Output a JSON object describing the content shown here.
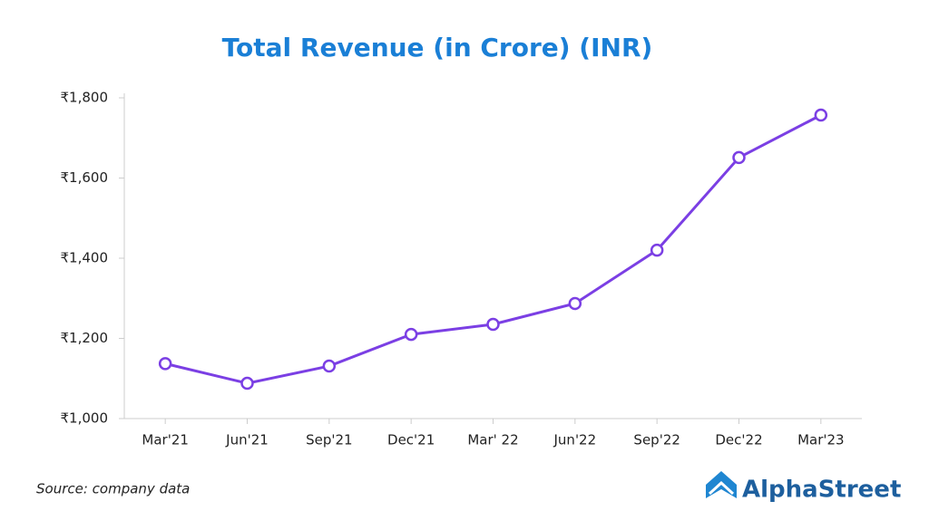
{
  "chart_data": {
    "type": "line",
    "title": "Total Revenue (in Crore) (INR)",
    "categories": [
      "Mar'21",
      "Jun'21",
      "Sep'21",
      "Dec'21",
      "Mar' 22",
      "Jun'22",
      "Sep'22",
      "Dec'22",
      "Mar'23"
    ],
    "series": [
      {
        "name": "Total Revenue",
        "color": "#7b3fe4",
        "values": [
          1137,
          1088,
          1131,
          1210,
          1235,
          1287,
          1420,
          1651,
          1757
        ]
      }
    ],
    "ylim": [
      1000,
      1800
    ],
    "yticks": [
      {
        "value": 1000,
        "label": "₹1,000"
      },
      {
        "value": 1200,
        "label": "₹1,200"
      },
      {
        "value": 1400,
        "label": "₹1,400"
      },
      {
        "value": 1600,
        "label": "₹1,600"
      },
      {
        "value": 1800,
        "label": "₹1,800"
      }
    ],
    "source": "Source: company data",
    "brand": "AlphaStreet"
  }
}
